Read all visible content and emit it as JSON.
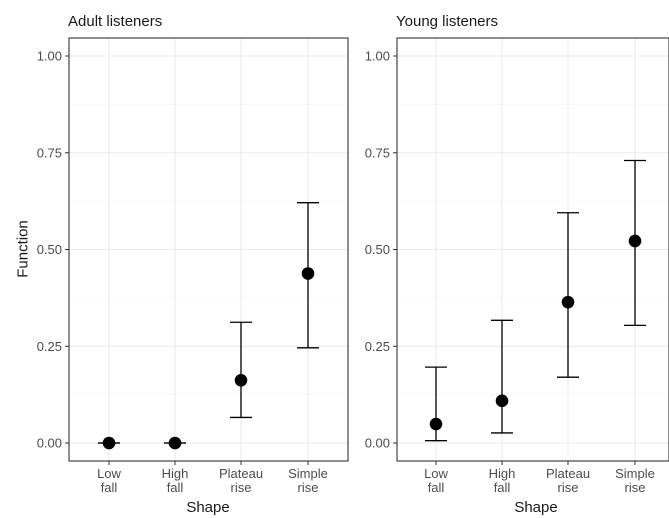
{
  "chart_data": {
    "type": "scatter",
    "xlabel": "Shape",
    "ylabel": "Function",
    "ylim": [
      0,
      1
    ],
    "yticks": [
      "0.00",
      "0.25",
      "0.50",
      "0.75",
      "1.00"
    ],
    "categories": [
      [
        "Low",
        "fall"
      ],
      [
        "High",
        "fall"
      ],
      [
        "Plateau",
        "rise"
      ],
      [
        "Simple",
        "rise"
      ]
    ],
    "grid": true,
    "panels": [
      {
        "title": "Adult listeners",
        "points": [
          {
            "y": 0.0,
            "lo": 0.0,
            "hi": 0.0
          },
          {
            "y": 0.0,
            "lo": 0.0,
            "hi": 0.0
          },
          {
            "y": 0.162,
            "lo": 0.066,
            "hi": 0.312
          },
          {
            "y": 0.438,
            "lo": 0.246,
            "hi": 0.621
          }
        ]
      },
      {
        "title": "Young listeners",
        "points": [
          {
            "y": 0.049,
            "lo": 0.006,
            "hi": 0.196
          },
          {
            "y": 0.109,
            "lo": 0.026,
            "hi": 0.317
          },
          {
            "y": 0.364,
            "lo": 0.17,
            "hi": 0.595
          },
          {
            "y": 0.522,
            "lo": 0.304,
            "hi": 0.73
          }
        ]
      }
    ]
  }
}
